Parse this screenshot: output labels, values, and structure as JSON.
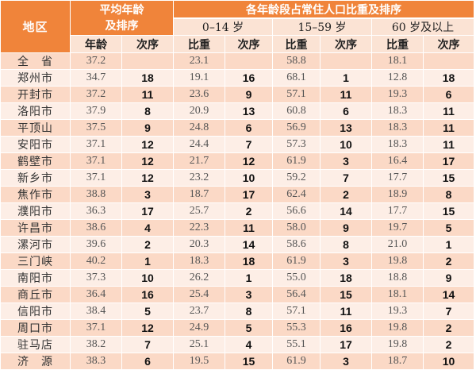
{
  "table": {
    "header": {
      "region": "地区",
      "avg_age_group": "平均年龄及排序",
      "age_share_group": "各年龄段占常住人口比重及排序",
      "bands": [
        "0–14 岁",
        "15–59 岁",
        "60 岁及以上"
      ],
      "avg_sub": [
        "年龄",
        "次序"
      ],
      "band_sub": [
        "比重",
        "次序"
      ]
    },
    "rows": [
      {
        "region": "全　省",
        "age": "37.2",
        "age_rank": "",
        "b1": "23.1",
        "r1": "",
        "b2": "58.8",
        "r2": "",
        "b3": "18.1",
        "r3": ""
      },
      {
        "region": "郑州市",
        "age": "34.7",
        "age_rank": "18",
        "b1": "19.1",
        "r1": "16",
        "b2": "68.1",
        "r2": "1",
        "b3": "12.8",
        "r3": "18"
      },
      {
        "region": "开封市",
        "age": "37.2",
        "age_rank": "11",
        "b1": "23.6",
        "r1": "9",
        "b2": "57.1",
        "r2": "11",
        "b3": "19.3",
        "r3": "6"
      },
      {
        "region": "洛阳市",
        "age": "37.9",
        "age_rank": "8",
        "b1": "20.9",
        "r1": "13",
        "b2": "60.8",
        "r2": "6",
        "b3": "18.3",
        "r3": "11"
      },
      {
        "region": "平顶山",
        "age": "37.5",
        "age_rank": "9",
        "b1": "24.8",
        "r1": "6",
        "b2": "56.9",
        "r2": "13",
        "b3": "18.3",
        "r3": "11"
      },
      {
        "region": "安阳市",
        "age": "37.1",
        "age_rank": "12",
        "b1": "24.4",
        "r1": "7",
        "b2": "57.3",
        "r2": "10",
        "b3": "18.3",
        "r3": "11"
      },
      {
        "region": "鹤壁市",
        "age": "37.1",
        "age_rank": "12",
        "b1": "21.7",
        "r1": "12",
        "b2": "61.9",
        "r2": "3",
        "b3": "16.4",
        "r3": "17"
      },
      {
        "region": "新乡市",
        "age": "37.1",
        "age_rank": "12",
        "b1": "23.2",
        "r1": "10",
        "b2": "59.2",
        "r2": "7",
        "b3": "17.7",
        "r3": "15"
      },
      {
        "region": "焦作市",
        "age": "38.8",
        "age_rank": "3",
        "b1": "18.7",
        "r1": "17",
        "b2": "62.4",
        "r2": "2",
        "b3": "18.9",
        "r3": "8"
      },
      {
        "region": "濮阳市",
        "age": "36.3",
        "age_rank": "17",
        "b1": "25.7",
        "r1": "2",
        "b2": "56.6",
        "r2": "14",
        "b3": "17.7",
        "r3": "15"
      },
      {
        "region": "许昌市",
        "age": "38.6",
        "age_rank": "4",
        "b1": "22.3",
        "r1": "11",
        "b2": "58.0",
        "r2": "9",
        "b3": "19.7",
        "r3": "5"
      },
      {
        "region": "漯河市",
        "age": "39.6",
        "age_rank": "2",
        "b1": "20.3",
        "r1": "14",
        "b2": "58.6",
        "r2": "8",
        "b3": "21.0",
        "r3": "1"
      },
      {
        "region": "三门峡",
        "age": "40.2",
        "age_rank": "1",
        "b1": "18.3",
        "r1": "18",
        "b2": "61.9",
        "r2": "3",
        "b3": "19.8",
        "r3": "2"
      },
      {
        "region": "南阳市",
        "age": "37.3",
        "age_rank": "10",
        "b1": "26.2",
        "r1": "1",
        "b2": "55.0",
        "r2": "18",
        "b3": "18.8",
        "r3": "9"
      },
      {
        "region": "商丘市",
        "age": "36.4",
        "age_rank": "16",
        "b1": "25.4",
        "r1": "3",
        "b2": "56.4",
        "r2": "15",
        "b3": "18.1",
        "r3": "14"
      },
      {
        "region": "信阳市",
        "age": "38.4",
        "age_rank": "5",
        "b1": "23.7",
        "r1": "8",
        "b2": "57.1",
        "r2": "11",
        "b3": "19.3",
        "r3": "7"
      },
      {
        "region": "周口市",
        "age": "37.1",
        "age_rank": "12",
        "b1": "24.9",
        "r1": "5",
        "b2": "55.3",
        "r2": "16",
        "b3": "19.8",
        "r3": "2"
      },
      {
        "region": "驻马店",
        "age": "38.2",
        "age_rank": "7",
        "b1": "25.1",
        "r1": "4",
        "b2": "55.1",
        "r2": "17",
        "b3": "19.8",
        "r3": "2"
      },
      {
        "region": "济　源",
        "age": "38.3",
        "age_rank": "6",
        "b1": "19.5",
        "r1": "15",
        "b2": "61.9",
        "r2": "3",
        "b3": "18.7",
        "r3": "10"
      }
    ]
  },
  "colors": {
    "header_orange": "#f0843a",
    "header_light": "#fbe3d4",
    "row_dark": "#fbd9c6",
    "row_light": "#fdeee6"
  }
}
